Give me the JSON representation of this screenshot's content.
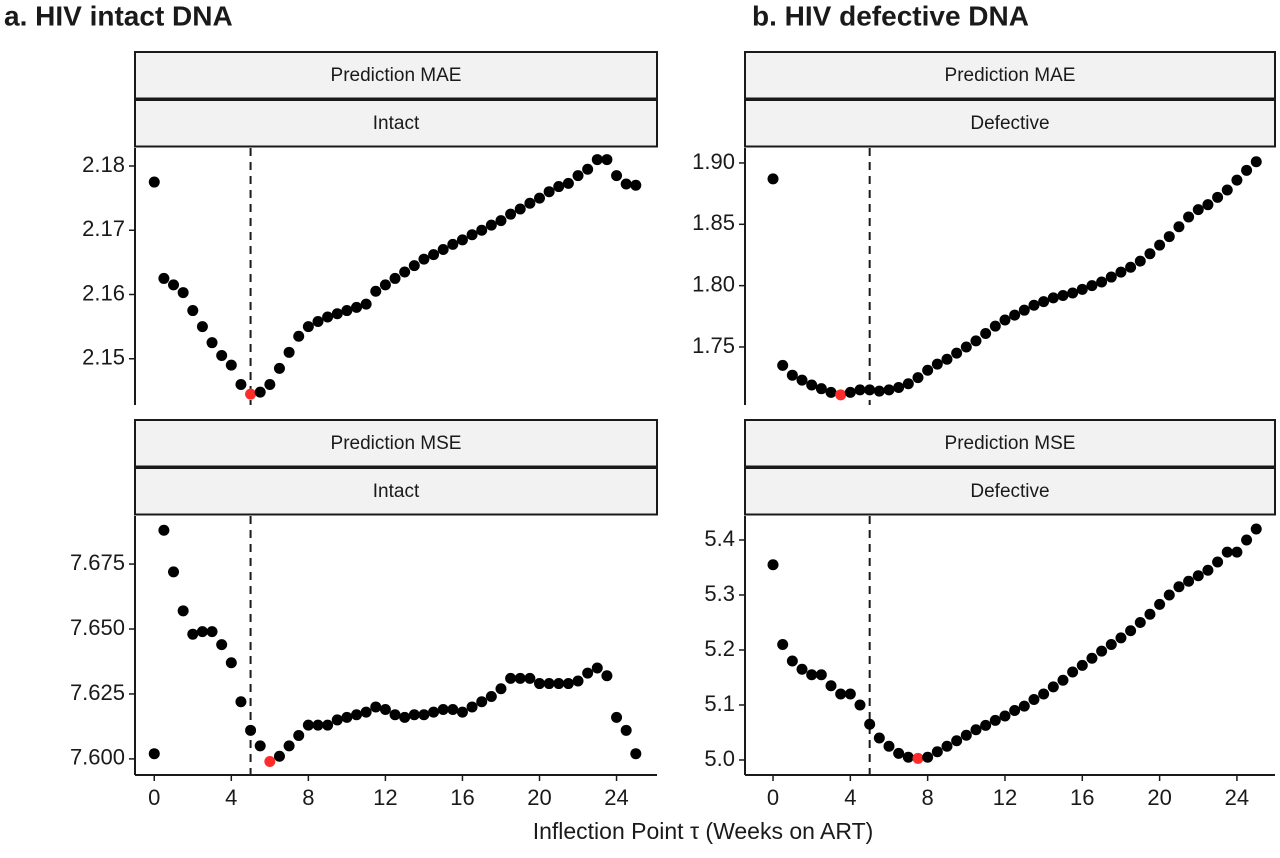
{
  "figure": {
    "panel_titles": [
      "a.   HIV intact DNA",
      "b.  HIV defective DNA"
    ],
    "x_label": "Inflection Point τ (Weeks on ART)"
  },
  "chart_data": [
    {
      "type": "scatter",
      "strips": [
        "Prediction MAE",
        "Intact"
      ],
      "color": "#000000",
      "highlight_x": 5,
      "highlight_color": "#ff2a2a",
      "vline": 5,
      "xlim": [
        -1,
        26.1
      ],
      "xticks": [
        0,
        4,
        8,
        12,
        16,
        20,
        24
      ],
      "ylim": [
        2.1428,
        2.1828
      ],
      "yticks": [
        2.15,
        2.16,
        2.17,
        2.18
      ],
      "x": [
        0,
        0.5,
        1,
        1.5,
        2,
        2.5,
        3,
        3.5,
        4,
        4.5,
        5,
        5.5,
        6,
        6.5,
        7,
        7.5,
        8,
        8.5,
        9,
        9.5,
        10,
        10.5,
        11,
        11.5,
        12,
        12.5,
        13,
        13.5,
        14,
        14.5,
        15,
        15.5,
        16,
        16.5,
        17,
        17.5,
        18,
        18.5,
        19,
        19.5,
        20,
        20.5,
        21,
        21.5,
        22,
        22.5,
        23,
        23.5,
        24,
        24.5,
        25
      ],
      "values": [
        2.1775,
        2.1625,
        2.1615,
        2.1603,
        2.1575,
        2.155,
        2.1525,
        2.1505,
        2.149,
        2.146,
        2.1445,
        2.1448,
        2.146,
        2.1485,
        2.151,
        2.1535,
        2.155,
        2.1558,
        2.1565,
        2.157,
        2.1575,
        2.158,
        2.1585,
        2.1605,
        2.1615,
        2.1625,
        2.1635,
        2.1645,
        2.1655,
        2.1662,
        2.167,
        2.1678,
        2.1685,
        2.1693,
        2.17,
        2.1708,
        2.1715,
        2.1725,
        2.1733,
        2.1742,
        2.175,
        2.176,
        2.1768,
        2.1773,
        2.1785,
        2.1795,
        2.181,
        2.181,
        2.1785,
        2.1772,
        2.177
      ]
    },
    {
      "type": "scatter",
      "strips": [
        "Prediction MSE",
        "Intact"
      ],
      "color": "#000000",
      "highlight_x": 6,
      "highlight_color": "#ff2a2a",
      "vline": 5,
      "xlim": [
        -1,
        26.1
      ],
      "xticks": [
        0,
        4,
        8,
        12,
        16,
        20,
        24
      ],
      "ylim": [
        7.5938,
        7.6935
      ],
      "yticks": [
        {
          "value": 7.6,
          "label": "7.600"
        },
        7.625,
        {
          "value": 7.65,
          "label": "7.650"
        },
        7.675
      ],
      "x": [
        0,
        0.5,
        1,
        1.5,
        2,
        2.5,
        3,
        3.5,
        4,
        4.5,
        5,
        5.5,
        6,
        6.5,
        7,
        7.5,
        8,
        8.5,
        9,
        9.5,
        10,
        10.5,
        11,
        11.5,
        12,
        12.5,
        13,
        13.5,
        14,
        14.5,
        15,
        15.5,
        16,
        16.5,
        17,
        17.5,
        18,
        18.5,
        19,
        19.5,
        20,
        20.5,
        21,
        21.5,
        22,
        22.5,
        23,
        23.5,
        24,
        24.5,
        25
      ],
      "values": [
        7.602,
        7.688,
        7.672,
        7.657,
        7.648,
        7.649,
        7.649,
        7.644,
        7.637,
        7.622,
        7.611,
        7.605,
        7.599,
        7.601,
        7.605,
        7.609,
        7.613,
        7.613,
        7.613,
        7.615,
        7.616,
        7.617,
        7.618,
        7.62,
        7.619,
        7.617,
        7.616,
        7.617,
        7.617,
        7.618,
        7.619,
        7.619,
        7.618,
        7.62,
        7.622,
        7.624,
        7.627,
        7.631,
        7.631,
        7.631,
        7.629,
        7.629,
        7.629,
        7.629,
        7.63,
        7.633,
        7.635,
        7.632,
        7.616,
        7.611,
        7.602
      ]
    },
    {
      "type": "scatter",
      "strips": [
        "Prediction MAE",
        "Defective"
      ],
      "color": "#000000",
      "highlight_x": 3.5,
      "highlight_color": "#ff2a2a",
      "vline": 5,
      "xlim": [
        -1.45,
        25.97
      ],
      "xticks": [
        0,
        4,
        8,
        12,
        16,
        20,
        24
      ],
      "ylim": [
        1.7027,
        1.9122
      ],
      "yticks": [
        1.75,
        {
          "value": 1.8,
          "label": "1.80"
        },
        1.85,
        {
          "value": 1.9,
          "label": "1.90"
        }
      ],
      "x": [
        0,
        0.5,
        1,
        1.5,
        2,
        2.5,
        3,
        3.5,
        4,
        4.5,
        5,
        5.5,
        6,
        6.5,
        7,
        7.5,
        8,
        8.5,
        9,
        9.5,
        10,
        10.5,
        11,
        11.5,
        12,
        12.5,
        13,
        13.5,
        14,
        14.5,
        15,
        15.5,
        16,
        16.5,
        17,
        17.5,
        18,
        18.5,
        19,
        19.5,
        20,
        20.5,
        21,
        21.5,
        22,
        22.5,
        23,
        23.5,
        24,
        24.5,
        25
      ],
      "values": [
        1.887,
        1.735,
        1.727,
        1.723,
        1.719,
        1.716,
        1.713,
        1.711,
        1.713,
        1.715,
        1.715,
        1.714,
        1.715,
        1.717,
        1.72,
        1.725,
        1.731,
        1.736,
        1.74,
        1.745,
        1.75,
        1.755,
        1.761,
        1.767,
        1.772,
        1.776,
        1.78,
        1.784,
        1.787,
        1.79,
        1.792,
        1.794,
        1.797,
        1.8,
        1.803,
        1.807,
        1.811,
        1.815,
        1.82,
        1.826,
        1.833,
        1.84,
        1.848,
        1.856,
        1.862,
        1.866,
        1.872,
        1.878,
        1.886,
        1.894,
        1.901
      ]
    },
    {
      "type": "scatter",
      "strips": [
        "Prediction MSE",
        "Defective"
      ],
      "color": "#000000",
      "highlight_x": 7.5,
      "highlight_color": "#ff2a2a",
      "vline": 5,
      "xlim": [
        -1.45,
        25.97
      ],
      "xticks": [
        0,
        4,
        8,
        12,
        16,
        20,
        24
      ],
      "ylim": [
        4.9727,
        5.4436
      ],
      "yticks": [
        {
          "value": 5,
          "label": "5.0"
        },
        5.1,
        5.2,
        5.3,
        5.4
      ],
      "x": [
        0,
        0.5,
        1,
        1.5,
        2,
        2.5,
        3,
        3.5,
        4,
        4.5,
        5,
        5.5,
        6,
        6.5,
        7,
        7.5,
        8,
        8.5,
        9,
        9.5,
        10,
        10.5,
        11,
        11.5,
        12,
        12.5,
        13,
        13.5,
        14,
        14.5,
        15,
        15.5,
        16,
        16.5,
        17,
        17.5,
        18,
        18.5,
        19,
        19.5,
        20,
        20.5,
        21,
        21.5,
        22,
        22.5,
        23,
        23.5,
        24,
        24.5,
        25
      ],
      "values": [
        5.355,
        5.21,
        5.18,
        5.165,
        5.155,
        5.155,
        5.135,
        5.12,
        5.12,
        5.1,
        5.065,
        5.04,
        5.025,
        5.012,
        5.005,
        5.003,
        5.005,
        5.015,
        5.025,
        5.035,
        5.045,
        5.055,
        5.063,
        5.072,
        5.08,
        5.09,
        5.098,
        5.11,
        5.12,
        5.133,
        5.145,
        5.16,
        5.172,
        5.185,
        5.198,
        5.21,
        5.222,
        5.235,
        5.25,
        5.265,
        5.283,
        5.3,
        5.315,
        5.325,
        5.335,
        5.345,
        5.36,
        5.378,
        5.378,
        5.4,
        5.42
      ]
    }
  ]
}
